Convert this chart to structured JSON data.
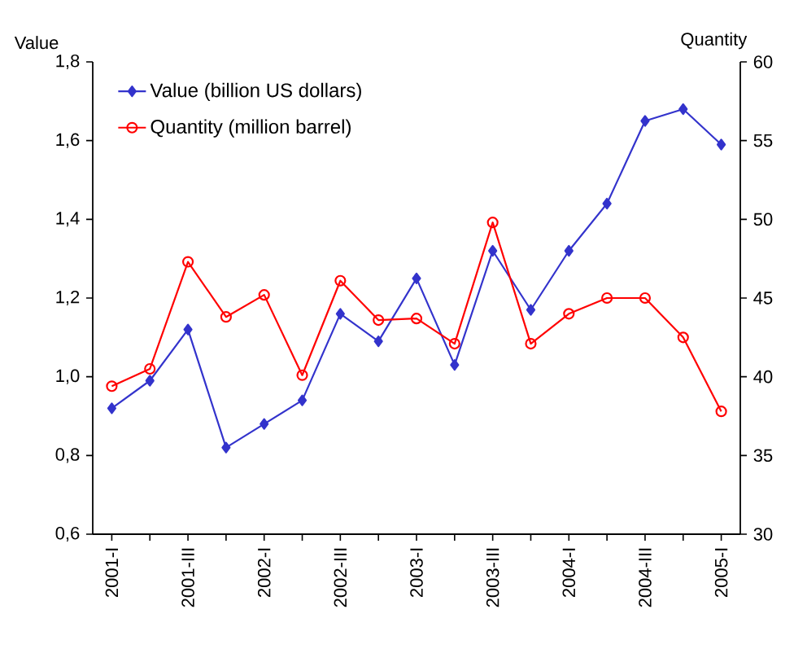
{
  "chart_data": {
    "type": "line",
    "ylabel": "Value",
    "y2label": "Quantity",
    "categories": [
      "2001-I",
      null,
      "2001-III",
      null,
      "2002-I",
      null,
      "2002-III",
      null,
      "2003-I",
      null,
      "2003-III",
      null,
      "2004-I",
      null,
      "2004-III",
      null,
      "2005-I"
    ],
    "series": [
      {
        "name": "Value (billion US dollars)",
        "color": "#3333cc",
        "marker": "diamond",
        "values": [
          0.92,
          0.99,
          1.12,
          0.82,
          0.88,
          0.94,
          1.16,
          1.09,
          1.25,
          1.03,
          1.32,
          1.17,
          1.32,
          1.44,
          1.65,
          1.68,
          1.59
        ]
      },
      {
        "name": "Quantity (million barrel)",
        "color": "#ff0000",
        "marker": "circle",
        "axis": "y2",
        "values": [
          39.4,
          40.5,
          47.3,
          43.8,
          45.2,
          40.1,
          46.1,
          43.6,
          43.7,
          42.1,
          49.8,
          42.1,
          44.0,
          45.0,
          45.0,
          42.5,
          37.8
        ]
      }
    ],
    "ylim": [
      0.6,
      1.8
    ],
    "yticks": [
      {
        "value": 0.6,
        "label": "0,6"
      },
      {
        "value": 0.8,
        "label": "0,8"
      },
      {
        "value": 1.0,
        "label": "1,0"
      },
      {
        "value": 1.2,
        "label": "1,2"
      },
      {
        "value": 1.4,
        "label": "1,4"
      },
      {
        "value": 1.6,
        "label": "1,6"
      },
      {
        "value": 1.8,
        "label": "1,8"
      }
    ],
    "y2lim": [
      30,
      60
    ],
    "y2ticks": [
      30,
      35,
      40,
      45,
      50,
      55,
      60
    ],
    "legend": "top left",
    "grid": false
  }
}
